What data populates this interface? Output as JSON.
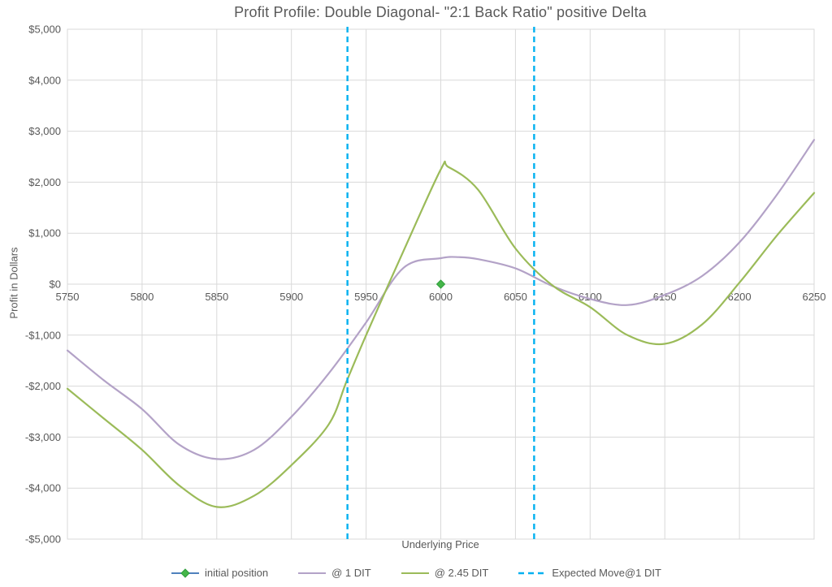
{
  "chart_data": {
    "type": "line",
    "title": "Profit Profile: Double Diagonal- \"2:1 Back Ratio\" positive Delta",
    "xlabel": "Underlying Price",
    "ylabel": "Profit in Dollars",
    "xlim": [
      5750,
      6250
    ],
    "ylim": [
      -5000,
      5000
    ],
    "grid": true,
    "grid_color": "#d9d9d9",
    "text_color": "#595959",
    "legend_position": "bottom",
    "xticks": [
      {
        "value": 5750,
        "label": "5750"
      },
      {
        "value": 5800,
        "label": "5800"
      },
      {
        "value": 5850,
        "label": "5850"
      },
      {
        "value": 5900,
        "label": "5900"
      },
      {
        "value": 5950,
        "label": "5950"
      },
      {
        "value": 6000,
        "label": "6000"
      },
      {
        "value": 6050,
        "label": "6050"
      },
      {
        "value": 6100,
        "label": "6100"
      },
      {
        "value": 6150,
        "label": "6150"
      },
      {
        "value": 6200,
        "label": "6200"
      },
      {
        "value": 6250,
        "label": "6250"
      }
    ],
    "yticks": [
      {
        "value": 5000,
        "label": "$5,000"
      },
      {
        "value": 4000,
        "label": "$4,000"
      },
      {
        "value": 3000,
        "label": "$3,000"
      },
      {
        "value": 2000,
        "label": "$2,000"
      },
      {
        "value": 1000,
        "label": "$1,000"
      },
      {
        "value": 0,
        "label": "$0"
      },
      {
        "value": -1000,
        "label": "-$1,000"
      },
      {
        "value": -2000,
        "label": "-$2,000"
      },
      {
        "value": -3000,
        "label": "-$3,000"
      },
      {
        "value": -4000,
        "label": "-$4,000"
      },
      {
        "value": -5000,
        "label": "-$5,000"
      }
    ],
    "series": [
      {
        "name": "initial position",
        "type": "point",
        "line_color": "#4f81bd",
        "marker": "diamond",
        "marker_fill": "#45b649",
        "marker_stroke": "#2f9e3c",
        "points": [
          [
            6000,
            0
          ]
        ]
      },
      {
        "name": "@ 1 DIT",
        "type": "smooth-line",
        "color": "#b3a2c7",
        "x": [
          5750,
          5775,
          5800,
          5825,
          5850,
          5875,
          5900,
          5925,
          5950,
          5975,
          6000,
          6012,
          6025,
          6050,
          6075,
          6100,
          6125,
          6150,
          6175,
          6200,
          6225,
          6250
        ],
        "y": [
          -1300,
          -1900,
          -2450,
          -3150,
          -3430,
          -3250,
          -2600,
          -1750,
          -750,
          320,
          510,
          530,
          490,
          310,
          -40,
          -290,
          -410,
          -210,
          160,
          820,
          1750,
          2830
        ]
      },
      {
        "name": "@ 2.45 DIT",
        "type": "smooth-line",
        "color": "#9bbb59",
        "x": [
          5750,
          5775,
          5800,
          5825,
          5850,
          5875,
          5900,
          5925,
          5937,
          5950,
          5975,
          6000,
          6005,
          6025,
          6050,
          6075,
          6100,
          6125,
          6150,
          6175,
          6200,
          6225,
          6250
        ],
        "y": [
          -2050,
          -2650,
          -3250,
          -3950,
          -4370,
          -4150,
          -3550,
          -2750,
          -1900,
          -1000,
          650,
          2250,
          2300,
          1850,
          700,
          -30,
          -450,
          -1000,
          -1170,
          -790,
          30,
          950,
          1790
        ]
      },
      {
        "name": "Expected Move@1 DIT",
        "type": "vline",
        "color": "#00b0f0",
        "x": [
          5937.5,
          6062.5
        ]
      }
    ]
  }
}
